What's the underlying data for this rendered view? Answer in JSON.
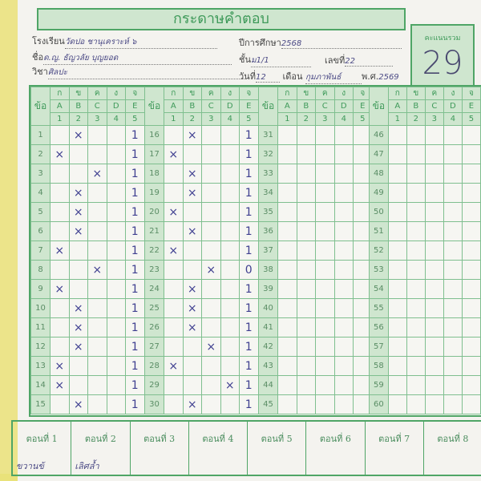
{
  "sheet": {
    "title": "กระดาษคำตอบ",
    "score_label": "คะแนนรวม",
    "score": "29",
    "school_label": "โรงเรียน",
    "school_value": "วัดปอ ชานุเคราะห์ ๖",
    "year_label": "ปีการศึกษา",
    "year_value": "2568",
    "name_label": "ชื่อ",
    "name_value": "ด.ญ. ธัญวลัย บุญยอด",
    "class_label": "ชั้น",
    "class_value": "ม1/1",
    "number_label": "เลขที่",
    "number_value": "22",
    "subject_label": "วิชา",
    "subject_value": "ศิลปะ",
    "day_label": "วันที่",
    "day_value": "12",
    "month_label": "เดือน",
    "month_value": "กุมภาพันธ์",
    "be_label": "พ.ศ.",
    "be_value": "2569"
  },
  "grid": {
    "no_label": "ข้อ",
    "thai_choices": [
      "ก",
      "ข",
      "ค",
      "ง",
      "จ"
    ],
    "latin_choices": [
      "A",
      "B",
      "C",
      "D",
      "E"
    ],
    "num_choices": [
      "1",
      "2",
      "3",
      "4",
      "5"
    ],
    "answers": {
      "1": "B",
      "2": "A",
      "3": "C",
      "4": "B",
      "5": "B",
      "6": "B",
      "7": "A",
      "8": "C",
      "9": "A",
      "10": "B",
      "11": "B",
      "12": "B",
      "13": "A",
      "14": "A",
      "15": "B",
      "16": "B",
      "17": "A",
      "18": "B",
      "19": "B",
      "20": "A",
      "21": "B",
      "22": "A",
      "23": "C",
      "24": "B",
      "25": "B",
      "26": "B",
      "27": "C",
      "28": "A",
      "29": "D",
      "30": "B"
    },
    "scores": {
      "1": "1",
      "2": "1",
      "3": "1",
      "4": "1",
      "5": "1",
      "6": "1",
      "7": "1",
      "8": "1",
      "9": "1",
      "10": "1",
      "11": "1",
      "12": "1",
      "13": "1",
      "14": "1",
      "15": "1",
      "16": "1",
      "17": "1",
      "18": "1",
      "19": "1",
      "20": "1",
      "21": "1",
      "22": "1",
      "23": "0",
      "24": "1",
      "25": "1",
      "26": "1",
      "27": "1",
      "28": "1",
      "29": "1",
      "30": "1"
    },
    "mark_symbol": "×"
  },
  "parts": [
    {
      "label": "ตอนที่ 1",
      "value": "ขวานข้"
    },
    {
      "label": "ตอนที่ 2",
      "value": "เลิศล้ำ"
    },
    {
      "label": "ตอนที่ 3",
      "value": ""
    },
    {
      "label": "ตอนที่ 4",
      "value": ""
    },
    {
      "label": "ตอนที่ 5",
      "value": ""
    },
    {
      "label": "ตอนที่ 6",
      "value": ""
    },
    {
      "label": "ตอนที่ 7",
      "value": ""
    },
    {
      "label": "ตอนที่ 8",
      "value": ""
    }
  ],
  "colors": {
    "accent": "#4fa566",
    "fill": "#cfe6cf",
    "ink": "#3f3f90"
  }
}
